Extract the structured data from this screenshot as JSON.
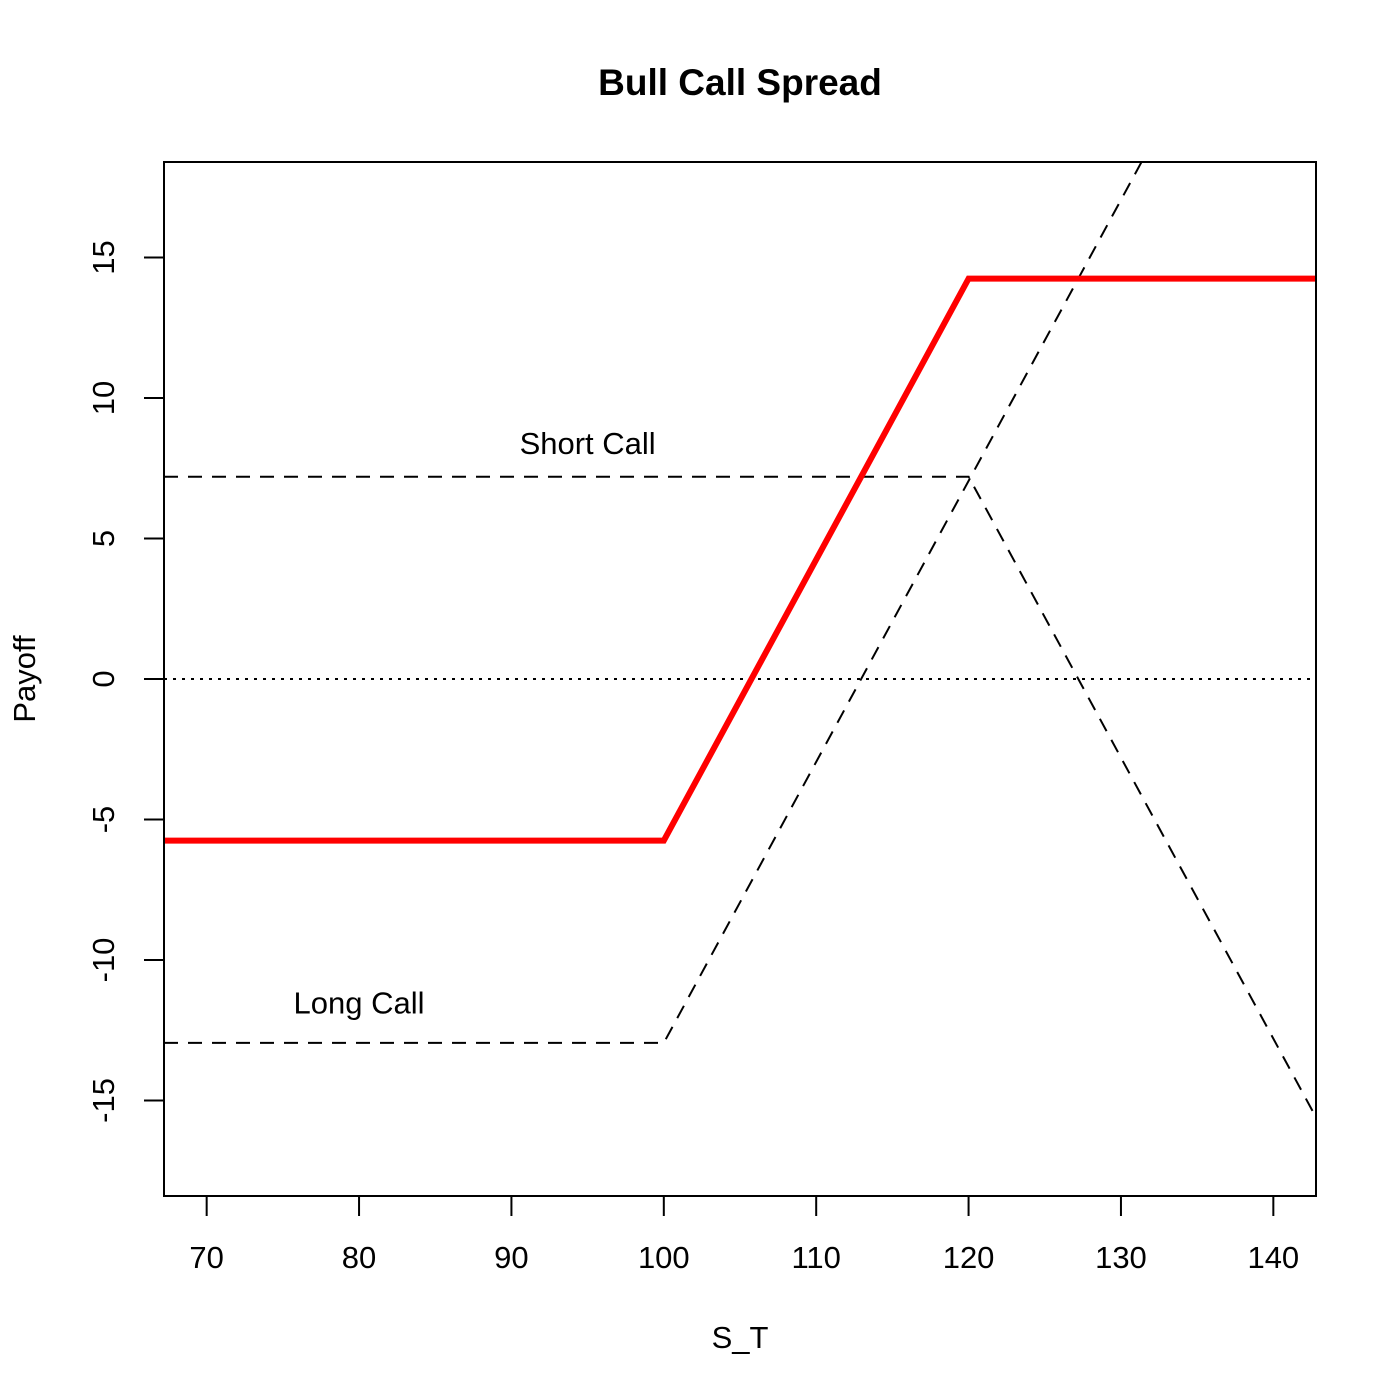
{
  "chart_data": {
    "type": "line",
    "title": "Bull Call Spread",
    "xlabel": "S_T",
    "ylabel": "Payoff",
    "xlim": [
      67.2,
      142.8
    ],
    "ylim": [
      -18.4,
      18.4
    ],
    "xticks": [
      70,
      80,
      90,
      100,
      110,
      120,
      130,
      140
    ],
    "yticks": [
      -15,
      -10,
      -5,
      0,
      5,
      10,
      15
    ],
    "grid": false,
    "colors": {
      "spread": "#ff0000",
      "legs": "#000000",
      "zero_line": "#000000"
    },
    "series": [
      {
        "style": "solid-thick",
        "color": "#ff0000",
        "points": [
          [
            67.2,
            -5.75
          ],
          [
            100,
            -5.75
          ],
          [
            120,
            14.25
          ],
          [
            142.8,
            14.25
          ]
        ]
      },
      {
        "style": "dashed",
        "color": "#000000",
        "points": [
          [
            67.2,
            -12.95
          ],
          [
            100,
            -12.95
          ],
          [
            132.3,
            19.35
          ]
        ]
      },
      {
        "style": "dashed",
        "color": "#000000",
        "points": [
          [
            67.2,
            7.2
          ],
          [
            120,
            7.2
          ],
          [
            142.8,
            -15.6
          ]
        ]
      },
      {
        "style": "dotted",
        "color": "#000000",
        "points": [
          [
            67.2,
            0
          ],
          [
            142.8,
            0
          ]
        ]
      }
    ],
    "annotations": [
      {
        "text": "Short Call",
        "x": 95,
        "y": 8.0
      },
      {
        "text": "Long Call",
        "x": 80,
        "y": -11.9
      }
    ]
  }
}
